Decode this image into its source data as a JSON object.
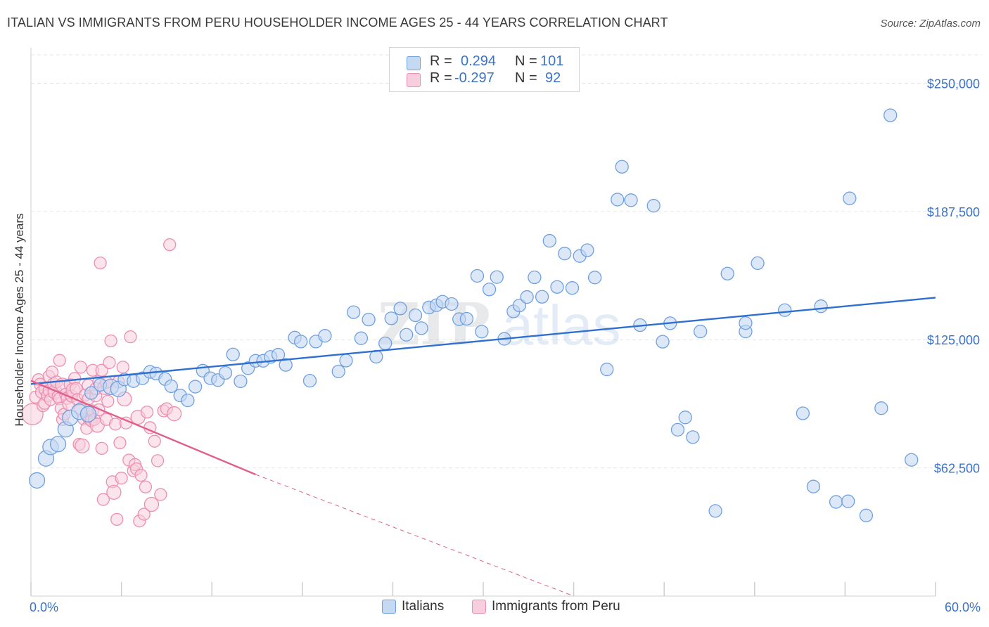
{
  "title": "ITALIAN VS IMMIGRANTS FROM PERU HOUSEHOLDER INCOME AGES 25 - 44 YEARS CORRELATION CHART",
  "source": "Source: ZipAtlas.com",
  "watermark": {
    "zip": "ZIP",
    "atlas": "atlas"
  },
  "legend": {
    "rows": [
      {
        "r_label": "R =",
        "r_value": "0.294",
        "n_label": "N =",
        "n_value": "101"
      },
      {
        "r_label": "R =",
        "r_value": "-0.297",
        "n_label": "N =",
        "n_value": "92"
      }
    ]
  },
  "bottom_legend": {
    "italians": "Italians",
    "peru": "Immigrants from Peru"
  },
  "colors": {
    "blue": "#6fa0e0",
    "blue_fill": "#c5d9f3",
    "blue_line": "#2f6fd0",
    "pink": "#ec8fb0",
    "pink_fill": "#f8cddd",
    "pink_line": "#e05f8d",
    "tick_label": "#3b73c8",
    "grid": "#e6e6e6"
  },
  "chart_data": {
    "type": "scatter",
    "title": "ITALIAN VS IMMIGRANTS FROM PERU HOUSEHOLDER INCOME AGES 25 - 44 YEARS CORRELATION CHART",
    "xlabel": "",
    "ylabel": "Householder Income Ages 25 - 44 years",
    "xlim": [
      0,
      60
    ],
    "ylim": [
      0,
      262500
    ],
    "x_tick_labels": [
      "0.0%",
      "60.0%"
    ],
    "y_ticks": [
      62500,
      125000,
      187500,
      250000
    ],
    "y_tick_labels": [
      "$62,500",
      "$125,000",
      "$187,500",
      "$250,000"
    ],
    "grid": true,
    "legend_position": "top-center",
    "series": [
      {
        "name": "Italians",
        "color": "#6fa0e0",
        "trend": {
          "x": [
            0,
            60
          ],
          "y": [
            103400,
            145500
          ]
        },
        "points": [
          [
            0.4,
            56400
          ],
          [
            1.0,
            67100
          ],
          [
            1.3,
            72700
          ],
          [
            1.8,
            74100
          ],
          [
            2.3,
            81300
          ],
          [
            2.6,
            86900
          ],
          [
            3.2,
            89900
          ],
          [
            3.8,
            88700
          ],
          [
            4.0,
            99000
          ],
          [
            4.6,
            103000
          ],
          [
            5.3,
            102000
          ],
          [
            5.8,
            101000
          ],
          [
            6.2,
            105600
          ],
          [
            6.8,
            104800
          ],
          [
            7.4,
            106200
          ],
          [
            7.9,
            109300
          ],
          [
            8.3,
            108500
          ],
          [
            8.9,
            105800
          ],
          [
            9.3,
            102300
          ],
          [
            9.9,
            97800
          ],
          [
            10.4,
            95400
          ],
          [
            10.9,
            102100
          ],
          [
            11.4,
            109900
          ],
          [
            11.9,
            106200
          ],
          [
            12.4,
            105300
          ],
          [
            12.9,
            108800
          ],
          [
            13.4,
            117800
          ],
          [
            13.9,
            104700
          ],
          [
            14.4,
            111100
          ],
          [
            14.9,
            114700
          ],
          [
            15.4,
            114700
          ],
          [
            15.9,
            116600
          ],
          [
            16.4,
            117700
          ],
          [
            16.9,
            112700
          ],
          [
            17.5,
            126000
          ],
          [
            17.9,
            124100
          ],
          [
            18.5,
            105000
          ],
          [
            18.9,
            124100
          ],
          [
            19.5,
            126900
          ],
          [
            20.4,
            109500
          ],
          [
            20.9,
            114800
          ],
          [
            21.4,
            138400
          ],
          [
            21.9,
            125700
          ],
          [
            22.4,
            134800
          ],
          [
            22.9,
            116700
          ],
          [
            23.5,
            123200
          ],
          [
            23.9,
            135400
          ],
          [
            24.5,
            140200
          ],
          [
            24.9,
            127400
          ],
          [
            25.5,
            136900
          ],
          [
            25.9,
            130600
          ],
          [
            26.4,
            140700
          ],
          [
            26.9,
            141800
          ],
          [
            27.3,
            143500
          ],
          [
            27.9,
            142400
          ],
          [
            28.4,
            135000
          ],
          [
            28.9,
            135200
          ],
          [
            29.6,
            156100
          ],
          [
            29.9,
            128900
          ],
          [
            30.4,
            149500
          ],
          [
            30.9,
            155500
          ],
          [
            31.4,
            125400
          ],
          [
            32.0,
            138800
          ],
          [
            32.4,
            141700
          ],
          [
            32.9,
            145800
          ],
          [
            33.4,
            155400
          ],
          [
            33.9,
            145900
          ],
          [
            34.4,
            173200
          ],
          [
            34.9,
            150700
          ],
          [
            35.4,
            167000
          ],
          [
            35.9,
            150200
          ],
          [
            36.4,
            165800
          ],
          [
            36.9,
            168600
          ],
          [
            37.4,
            155300
          ],
          [
            38.2,
            110500
          ],
          [
            38.9,
            193300
          ],
          [
            39.2,
            209300
          ],
          [
            39.8,
            193000
          ],
          [
            40.4,
            132100
          ],
          [
            41.3,
            190300
          ],
          [
            41.9,
            124000
          ],
          [
            42.4,
            133000
          ],
          [
            42.9,
            81100
          ],
          [
            43.4,
            87100
          ],
          [
            43.9,
            77500
          ],
          [
            44.4,
            129000
          ],
          [
            45.4,
            41500
          ],
          [
            46.2,
            157200
          ],
          [
            47.4,
            129000
          ],
          [
            47.4,
            133100
          ],
          [
            48.2,
            162300
          ],
          [
            50.0,
            139400
          ],
          [
            51.2,
            89100
          ],
          [
            51.9,
            53400
          ],
          [
            52.4,
            141300
          ],
          [
            53.4,
            45900
          ],
          [
            54.2,
            46200
          ],
          [
            54.3,
            193900
          ],
          [
            55.4,
            39300
          ],
          [
            56.4,
            91600
          ],
          [
            57.0,
            234400
          ],
          [
            58.4,
            66400
          ]
        ]
      },
      {
        "name": "Immigrants from Peru",
        "color": "#ec8fb0",
        "trend": {
          "x": [
            0,
            14.9
          ],
          "y": [
            105000,
            59300
          ]
        },
        "trend_ext": {
          "x": [
            14.9,
            36.0
          ],
          "y": [
            59300,
            0
          ]
        },
        "points": [
          [
            0.1,
            88700
          ],
          [
            0.3,
            97000
          ],
          [
            0.5,
            105500
          ],
          [
            0.6,
            103300
          ],
          [
            0.7,
            99400
          ],
          [
            0.8,
            92800
          ],
          [
            0.9,
            94000
          ],
          [
            1.0,
            101000
          ],
          [
            1.1,
            97700
          ],
          [
            1.2,
            107100
          ],
          [
            1.2,
            100100
          ],
          [
            1.3,
            95800
          ],
          [
            1.4,
            109200
          ],
          [
            1.5,
            103500
          ],
          [
            1.6,
            99500
          ],
          [
            1.7,
            104400
          ],
          [
            1.8,
            97300
          ],
          [
            1.9,
            96200
          ],
          [
            1.9,
            114900
          ],
          [
            2.0,
            91500
          ],
          [
            2.1,
            86100
          ],
          [
            2.1,
            102800
          ],
          [
            2.2,
            88600
          ],
          [
            2.3,
            98400
          ],
          [
            2.4,
            96400
          ],
          [
            2.5,
            93400
          ],
          [
            2.6,
            103100
          ],
          [
            2.7,
            97500
          ],
          [
            2.8,
            100400
          ],
          [
            2.9,
            106100
          ],
          [
            3.0,
            101200
          ],
          [
            3.1,
            95800
          ],
          [
            3.2,
            74000
          ],
          [
            3.3,
            111600
          ],
          [
            3.3,
            91400
          ],
          [
            3.4,
            73200
          ],
          [
            3.5,
            86400
          ],
          [
            3.6,
            98000
          ],
          [
            3.7,
            88900
          ],
          [
            3.7,
            81800
          ],
          [
            3.8,
            102800
          ],
          [
            3.8,
            96100
          ],
          [
            3.9,
            86900
          ],
          [
            4.0,
            85500
          ],
          [
            4.1,
            90300
          ],
          [
            4.1,
            110100
          ],
          [
            4.2,
            86100
          ],
          [
            4.3,
            97600
          ],
          [
            4.3,
            101100
          ],
          [
            4.4,
            83300
          ],
          [
            4.5,
            104500
          ],
          [
            4.5,
            90800
          ],
          [
            4.6,
            162400
          ],
          [
            4.7,
            110100
          ],
          [
            4.7,
            72000
          ],
          [
            4.8,
            47100
          ],
          [
            4.9,
            101700
          ],
          [
            5.0,
            104300
          ],
          [
            5.0,
            86100
          ],
          [
            5.1,
            95000
          ],
          [
            5.2,
            113800
          ],
          [
            5.3,
            124400
          ],
          [
            5.4,
            55700
          ],
          [
            5.5,
            50600
          ],
          [
            5.6,
            83800
          ],
          [
            5.7,
            37400
          ],
          [
            5.8,
            104400
          ],
          [
            5.9,
            74700
          ],
          [
            6.0,
            57500
          ],
          [
            6.1,
            111600
          ],
          [
            6.2,
            96100
          ],
          [
            6.3,
            84400
          ],
          [
            6.5,
            66300
          ],
          [
            6.6,
            126400
          ],
          [
            6.8,
            61100
          ],
          [
            6.9,
            64100
          ],
          [
            7.0,
            62000
          ],
          [
            7.1,
            87200
          ],
          [
            7.2,
            36600
          ],
          [
            7.3,
            58900
          ],
          [
            7.5,
            39900
          ],
          [
            7.6,
            53200
          ],
          [
            7.7,
            89700
          ],
          [
            7.9,
            82100
          ],
          [
            8.0,
            44700
          ],
          [
            8.2,
            75500
          ],
          [
            8.4,
            66000
          ],
          [
            8.6,
            49500
          ],
          [
            8.8,
            90300
          ],
          [
            9.0,
            91300
          ],
          [
            9.2,
            171300
          ],
          [
            9.5,
            88900
          ]
        ]
      }
    ]
  }
}
